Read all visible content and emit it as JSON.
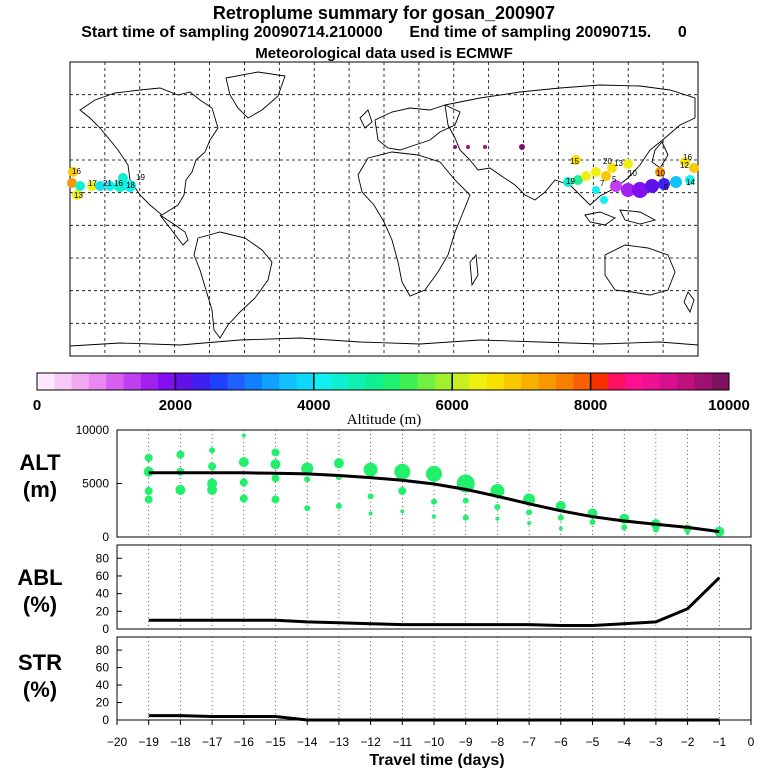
{
  "header": {
    "title": "Retroplume summary for gosan_200907",
    "sampling_line": "Start time of sampling 20090714.210000      End time of sampling 20090715.      0",
    "met_line": "Meteorological data used is ECMWF"
  },
  "colorbar": {
    "ticks": [
      "0",
      "2000",
      "4000",
      "6000",
      "8000",
      "10000"
    ],
    "label": "Altitude  (m)",
    "colors": [
      "#ffe8ff",
      "#f8c8f8",
      "#f0a8f0",
      "#e888f0",
      "#d860f0",
      "#c040f0",
      "#a020f0",
      "#8010f0",
      "#6010e8",
      "#4020f0",
      "#2040ff",
      "#2060ff",
      "#1080ff",
      "#10a0ff",
      "#10c0ff",
      "#10d8f8",
      "#10f0f0",
      "#10f0d0",
      "#10f0b0",
      "#10f090",
      "#20f070",
      "#40f050",
      "#70f040",
      "#a0f030",
      "#c8f020",
      "#f0f010",
      "#f8e000",
      "#f8c800",
      "#f8b000",
      "#f89800",
      "#f88000",
      "#f86000",
      "#f83000",
      "#ff1060",
      "#ff1090",
      "#f01090",
      "#d81090",
      "#c01080",
      "#a01070",
      "#801060"
    ]
  },
  "map_labels": {
    "pacific_west": [
      "16",
      "13",
      "17",
      "21",
      "16",
      "18",
      "19"
    ],
    "asia": [
      "15",
      "13",
      "10",
      "19",
      "20",
      "10",
      "7",
      "5",
      "12",
      "16",
      "14",
      "5"
    ]
  },
  "chart_data": [
    {
      "type": "line",
      "panel": "ALT",
      "ylabel": "ALT\n(m)",
      "yticks": [
        "0",
        "5000",
        "10000"
      ],
      "ylim": [
        0,
        10000
      ],
      "x": [
        -19,
        -18,
        -17,
        -16,
        -15,
        -14,
        -13,
        -12,
        -11,
        -10,
        -9,
        -8,
        -7,
        -6,
        -5,
        -4,
        -3,
        -2,
        -1
      ],
      "series": [
        {
          "name": "mean altitude",
          "values": [
            6000,
            6000,
            6000,
            6000,
            5950,
            5900,
            5750,
            5550,
            5300,
            4950,
            4450,
            3800,
            3100,
            2450,
            1900,
            1500,
            1200,
            900,
            500
          ]
        }
      ],
      "scatter": {
        "color": "#22f06a",
        "points": [
          [
            -19,
            7400,
            4
          ],
          [
            -19,
            6100,
            5
          ],
          [
            -19,
            4300,
            4
          ],
          [
            -19,
            3500,
            4
          ],
          [
            -18,
            7700,
            4
          ],
          [
            -18,
            6100,
            4
          ],
          [
            -18,
            4400,
            5
          ],
          [
            -17,
            8100,
            3
          ],
          [
            -17,
            6600,
            4
          ],
          [
            -17,
            5000,
            5
          ],
          [
            -17,
            4400,
            5
          ],
          [
            -16,
            9500,
            2
          ],
          [
            -16,
            7000,
            5
          ],
          [
            -16,
            5100,
            4
          ],
          [
            -16,
            3600,
            4
          ],
          [
            -15,
            7900,
            4
          ],
          [
            -15,
            6800,
            5
          ],
          [
            -15,
            5500,
            4
          ],
          [
            -15,
            3500,
            4
          ],
          [
            -14,
            6400,
            6
          ],
          [
            -14,
            5400,
            3
          ],
          [
            -14,
            2700,
            3
          ],
          [
            -13,
            6900,
            5
          ],
          [
            -13,
            5600,
            3
          ],
          [
            -13,
            2900,
            3
          ],
          [
            -12,
            6300,
            7
          ],
          [
            -12,
            3800,
            3
          ],
          [
            -12,
            2200,
            2
          ],
          [
            -11,
            6100,
            8
          ],
          [
            -11,
            4300,
            4
          ],
          [
            -11,
            2400,
            2
          ],
          [
            -10,
            5900,
            8
          ],
          [
            -10,
            3300,
            3
          ],
          [
            -10,
            1900,
            2
          ],
          [
            -9,
            5000,
            9
          ],
          [
            -9,
            3400,
            3
          ],
          [
            -9,
            1800,
            3
          ],
          [
            -8,
            4300,
            7
          ],
          [
            -8,
            2800,
            3
          ],
          [
            -8,
            1700,
            2
          ],
          [
            -7,
            3500,
            6
          ],
          [
            -7,
            2300,
            3
          ],
          [
            -7,
            1300,
            2
          ],
          [
            -6,
            2900,
            5
          ],
          [
            -6,
            1800,
            3
          ],
          [
            -6,
            800,
            2
          ],
          [
            -5,
            2200,
            5
          ],
          [
            -5,
            1400,
            3
          ],
          [
            -4,
            1700,
            5
          ],
          [
            -4,
            900,
            3
          ],
          [
            -3,
            1200,
            5
          ],
          [
            -3,
            700,
            3
          ],
          [
            -2,
            800,
            4
          ],
          [
            -2,
            400,
            2
          ],
          [
            -1,
            500,
            5
          ]
        ]
      }
    },
    {
      "type": "line",
      "panel": "ABL",
      "ylabel": "ABL\n(%)",
      "yticks": [
        "0",
        "20",
        "40",
        "60",
        "80"
      ],
      "ylim": [
        0,
        95
      ],
      "x": [
        -19,
        -18,
        -17,
        -16,
        -15,
        -14,
        -13,
        -12,
        -11,
        -10,
        -9,
        -8,
        -7,
        -6,
        -5,
        -4,
        -3,
        -2,
        -1
      ],
      "series": [
        {
          "name": "ABL fraction",
          "values": [
            10,
            10,
            10,
            10,
            10,
            8,
            7,
            6,
            5,
            5,
            5,
            5,
            5,
            4,
            4,
            6,
            8,
            23,
            58
          ]
        }
      ]
    },
    {
      "type": "line",
      "panel": "STR",
      "ylabel": "STR\n(%)",
      "yticks": [
        "0",
        "20",
        "40",
        "60",
        "80"
      ],
      "ylim": [
        0,
        95
      ],
      "x": [
        -19,
        -18,
        -17,
        -16,
        -15,
        -14,
        -13,
        -12,
        -11,
        -10,
        -9,
        -8,
        -7,
        -6,
        -5,
        -4,
        -3,
        -2,
        -1
      ],
      "series": [
        {
          "name": "stratospheric fraction",
          "values": [
            5,
            5,
            4,
            4,
            4,
            0,
            0,
            0,
            0,
            0,
            0,
            0,
            0,
            0,
            0,
            0,
            0,
            0,
            0
          ]
        }
      ]
    }
  ],
  "xaxis": {
    "label": "Travel time (days)",
    "ticks": [
      "−20",
      "−19",
      "−18",
      "−17",
      "−16",
      "−15",
      "−14",
      "−13",
      "−12",
      "−11",
      "−10",
      "−9",
      "−8",
      "−7",
      "−6",
      "−5",
      "−4",
      "−3",
      "−2",
      "−1",
      "0"
    ]
  }
}
